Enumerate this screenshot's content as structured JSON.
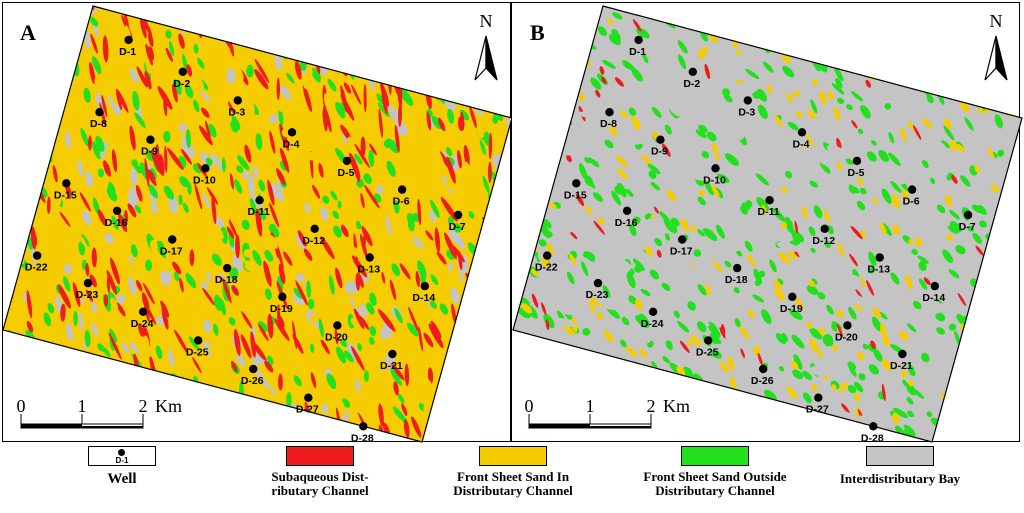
{
  "panels": [
    {
      "letter": "A",
      "north": "N",
      "scale": {
        "ticks": [
          "0",
          "1",
          "2"
        ],
        "unit": "Km"
      }
    },
    {
      "letter": "B",
      "north": "N",
      "scale": {
        "ticks": [
          "0",
          "1",
          "2"
        ],
        "unit": "Km"
      }
    }
  ],
  "wells": [
    "D-1",
    "D-2",
    "D-3",
    "D-4",
    "D-5",
    "D-6",
    "D-7",
    "D-8",
    "D-9",
    "D-10",
    "D-11",
    "D-12",
    "D-13",
    "D-14",
    "D-15",
    "D-16",
    "D-17",
    "D-18",
    "D-19",
    "D-20",
    "D-21",
    "D-22",
    "D-23",
    "D-24",
    "D-25",
    "D-26",
    "D-27",
    "D-28"
  ],
  "legend": {
    "well": {
      "label": "Well",
      "sample": "D-1"
    },
    "items": [
      {
        "key": "channel",
        "label_lines": [
          "Subaqueous Dist-",
          "ributary Channel"
        ],
        "color": "#ee1c1c"
      },
      {
        "key": "sheet_in",
        "label_lines": [
          "Front Sheet Sand In",
          "Distributary Channel"
        ],
        "color": "#f5cc00"
      },
      {
        "key": "sheet_out",
        "label_lines": [
          "Front Sheet Sand Outside",
          "Distributary Channel"
        ],
        "color": "#22e01e"
      },
      {
        "key": "bay",
        "label_lines": [
          "Interdistributary Bay"
        ],
        "color": "#c4c4c4"
      }
    ]
  }
}
